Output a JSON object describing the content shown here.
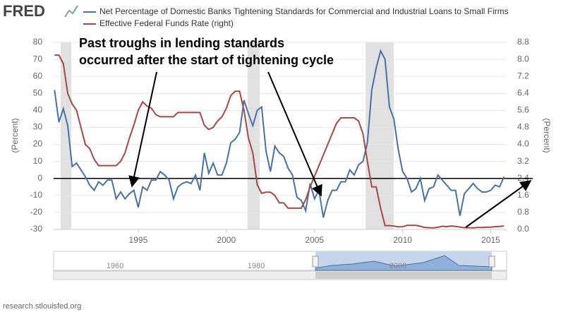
{
  "logo": "FRED",
  "footer": "research.stlouisfed.org",
  "chart_data": {
    "type": "line",
    "annotation": [
      "Past troughs in lending standards",
      "occurred after the start of tightening cycle"
    ],
    "ylabel": "(Percent)",
    "y2label": "(Percent)",
    "xlim": [
      1990.2,
      2015.9
    ],
    "xticks": [
      1995,
      2000,
      2005,
      2010,
      2015
    ],
    "ylim": [
      -30,
      80
    ],
    "yticks": [
      -30,
      -20,
      -10,
      0,
      10,
      20,
      30,
      40,
      50,
      60,
      70,
      80
    ],
    "y2lim": [
      0,
      8.8
    ],
    "y2ticks": [
      {
        "value": 0,
        "label": "0.0"
      },
      0.8,
      1.6,
      2.4,
      3.2,
      {
        "value": 4,
        "label": "4.0"
      },
      4.8,
      5.6,
      6.4,
      7.2,
      {
        "value": 8,
        "label": "8.0"
      },
      8.8
    ],
    "grid": true,
    "recessions": [
      [
        1990.6,
        1991.2
      ],
      [
        2001.2,
        2001.9
      ],
      [
        2007.9,
        2009.5
      ]
    ],
    "navigator_labels": [
      "1960",
      "1980",
      "2000"
    ],
    "x": [
      1990.25,
      1990.5,
      1990.75,
      1991,
      1991.25,
      1991.5,
      1991.75,
      1992,
      1992.25,
      1992.5,
      1992.75,
      1993,
      1993.25,
      1993.5,
      1993.75,
      1994,
      1994.25,
      1994.5,
      1994.75,
      1995,
      1995.25,
      1995.5,
      1995.75,
      1996,
      1996.25,
      1996.5,
      1996.75,
      1997,
      1997.25,
      1997.5,
      1997.75,
      1998,
      1998.25,
      1998.5,
      1998.75,
      1999,
      1999.25,
      1999.5,
      1999.75,
      2000,
      2000.25,
      2000.5,
      2000.75,
      2001,
      2001.25,
      2001.5,
      2001.75,
      2002,
      2002.25,
      2002.5,
      2002.75,
      2003,
      2003.25,
      2003.5,
      2003.75,
      2004,
      2004.25,
      2004.5,
      2004.75,
      2005,
      2005.25,
      2005.5,
      2005.75,
      2006,
      2006.25,
      2006.5,
      2006.75,
      2007,
      2007.25,
      2007.5,
      2007.75,
      2008,
      2008.25,
      2008.5,
      2008.75,
      2009,
      2009.25,
      2009.5,
      2009.75,
      2010,
      2010.25,
      2010.5,
      2010.75,
      2011,
      2011.25,
      2011.5,
      2011.75,
      2012,
      2012.25,
      2012.5,
      2012.75,
      2013,
      2013.25,
      2013.5,
      2013.75,
      2014,
      2014.25,
      2014.5,
      2014.75,
      2015,
      2015.25,
      2015.5,
      2015.75
    ],
    "series": [
      {
        "name": "Net Percentage of Domestic Banks Tightening Standards for Commercial and Industrial Loans to Small Firms",
        "color": "#4572a7",
        "values": [
          52,
          33,
          41,
          31,
          7,
          9,
          5,
          1,
          -4,
          -7,
          -2,
          -4,
          -1,
          -1,
          -12,
          -8,
          -12,
          -9,
          -7,
          -17,
          -5,
          -7,
          -1,
          -1,
          4,
          2,
          -1,
          -12,
          -5,
          -3,
          -2,
          -3,
          2,
          -7,
          15,
          3,
          9,
          2,
          2,
          9,
          21,
          23,
          27,
          46,
          38,
          31,
          40,
          42,
          16,
          4,
          19,
          15,
          13,
          6,
          2,
          -11,
          -13,
          -19,
          -3,
          -12,
          -7,
          -23,
          -13,
          -7,
          -7,
          -2,
          -2,
          5,
          2,
          8,
          10,
          21,
          52,
          65,
          75,
          70,
          42,
          35,
          17,
          4,
          0,
          -8,
          -6,
          0,
          -13,
          -6,
          -5,
          2,
          -1,
          -4,
          -7,
          -7,
          -22,
          -9,
          -6,
          -3,
          -6,
          -8,
          -8,
          -7,
          -4,
          -5,
          1
        ]
      },
      {
        "name": "Effective Federal Funds Rate (right)",
        "color": "#aa4643",
        "axis": "y2",
        "values": [
          8.2,
          8.2,
          7.8,
          6.4,
          5.9,
          5.6,
          4.8,
          4.0,
          3.8,
          3.3,
          3.0,
          3.0,
          3.0,
          3.0,
          3.0,
          3.2,
          3.6,
          4.3,
          4.9,
          5.6,
          6.0,
          5.8,
          5.7,
          5.4,
          5.3,
          5.3,
          5.3,
          5.3,
          5.5,
          5.5,
          5.5,
          5.5,
          5.5,
          5.5,
          4.9,
          4.7,
          4.8,
          5.1,
          5.3,
          5.7,
          6.3,
          6.5,
          6.5,
          5.6,
          4.3,
          3.6,
          2.1,
          1.7,
          1.75,
          1.75,
          1.6,
          1.25,
          1.25,
          1.0,
          1.0,
          1.0,
          1.0,
          1.4,
          2.0,
          2.5,
          3.0,
          3.5,
          4.0,
          4.5,
          5.0,
          5.25,
          5.25,
          5.25,
          5.25,
          5.1,
          4.5,
          3.2,
          2.0,
          2.0,
          1.0,
          0.18,
          0.18,
          0.16,
          0.12,
          0.13,
          0.19,
          0.19,
          0.19,
          0.15,
          0.09,
          0.08,
          0.07,
          0.1,
          0.15,
          0.13,
          0.16,
          0.14,
          0.11,
          0.08,
          0.08,
          0.07,
          0.09,
          0.09,
          0.1,
          0.11,
          0.13,
          0.14,
          0.16
        ]
      }
    ]
  }
}
